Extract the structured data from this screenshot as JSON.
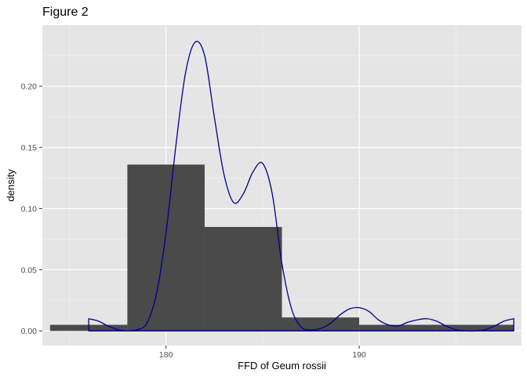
{
  "chart_data": {
    "type": "bar",
    "title": "Figure 2",
    "xlabel": "FFD of Geum rossii",
    "ylabel": "density",
    "xlim": [
      173.6,
      198.4
    ],
    "ylim": [
      -0.012,
      0.25
    ],
    "x_ticks": [
      180,
      190
    ],
    "y_ticks": [
      0.0,
      0.05,
      0.1,
      0.15,
      0.2
    ],
    "y_tick_labels": [
      "0.00",
      "0.05",
      "0.10",
      "0.15",
      "0.20"
    ],
    "grid": true,
    "histogram": {
      "bins": [
        {
          "x0": 174,
          "x1": 178,
          "density": 0.005
        },
        {
          "x0": 178,
          "x1": 182,
          "density": 0.136
        },
        {
          "x0": 182,
          "x1": 186,
          "density": 0.085
        },
        {
          "x0": 186,
          "x1": 190,
          "density": 0.011
        },
        {
          "x0": 190,
          "x1": 194,
          "density": 0.005
        },
        {
          "x0": 194,
          "x1": 198,
          "density": 0.005
        }
      ],
      "color": "#4a4a4a"
    },
    "density_curve": {
      "color": "#00008b",
      "x": [
        176,
        176.5,
        177,
        177.5,
        178,
        178.5,
        179,
        179.5,
        180,
        180.5,
        181,
        181.5,
        182,
        182.5,
        183,
        183.5,
        184,
        184.5,
        185,
        185.5,
        186,
        186.5,
        187,
        187.5,
        188,
        188.5,
        189,
        189.5,
        190,
        190.5,
        191,
        191.5,
        192,
        192.5,
        193,
        193.5,
        194,
        194.5,
        195,
        195.5,
        196,
        196.5,
        197,
        197.5,
        198
      ],
      "y": [
        0.01,
        0.008,
        0.004,
        0.001,
        0.0,
        0.001,
        0.006,
        0.03,
        0.08,
        0.15,
        0.21,
        0.236,
        0.225,
        0.175,
        0.128,
        0.105,
        0.112,
        0.13,
        0.137,
        0.112,
        0.055,
        0.018,
        0.003,
        0.001,
        0.002,
        0.006,
        0.013,
        0.018,
        0.019,
        0.016,
        0.009,
        0.005,
        0.004,
        0.007,
        0.009,
        0.01,
        0.008,
        0.004,
        0.001,
        0.0,
        0.0,
        0.001,
        0.004,
        0.008,
        0.01
      ]
    }
  }
}
